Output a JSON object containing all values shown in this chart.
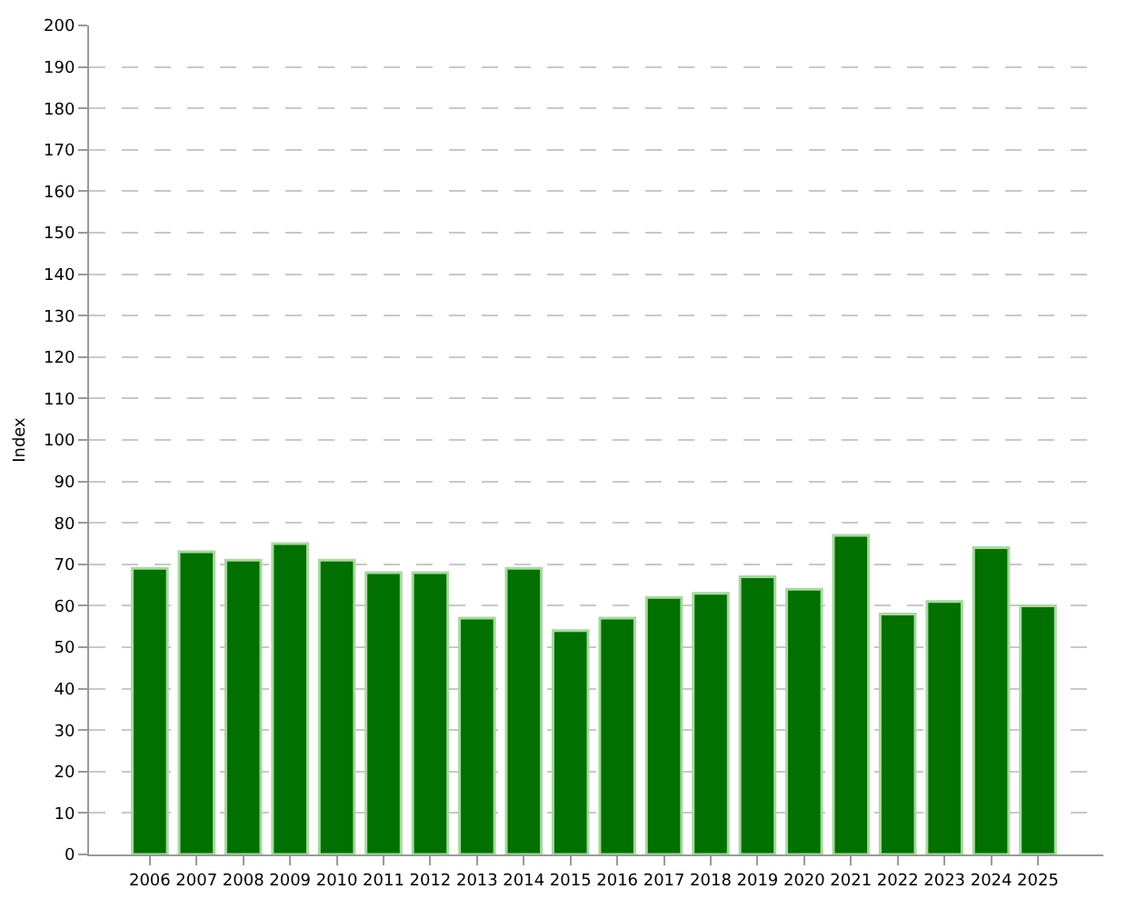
{
  "chart_data": {
    "type": "bar",
    "ylabel": "Index",
    "categories": [
      "2006",
      "2007",
      "2008",
      "2009",
      "2010",
      "2011",
      "2012",
      "2013",
      "2014",
      "2015",
      "2016",
      "2017",
      "2018",
      "2019",
      "2020",
      "2021",
      "2022",
      "2023",
      "2024",
      "2025"
    ],
    "values": [
      69,
      73,
      71,
      75,
      71,
      68,
      68,
      57,
      69,
      54,
      57,
      62,
      63,
      67,
      64,
      77,
      58,
      61,
      74,
      60
    ],
    "color": "#007000",
    "ylim": [
      0,
      200
    ],
    "yticks": [
      0,
      10,
      20,
      30,
      40,
      50,
      60,
      70,
      80,
      90,
      100,
      110,
      120,
      130,
      140,
      150,
      160,
      170,
      180,
      190,
      200
    ],
    "grid": "y"
  }
}
